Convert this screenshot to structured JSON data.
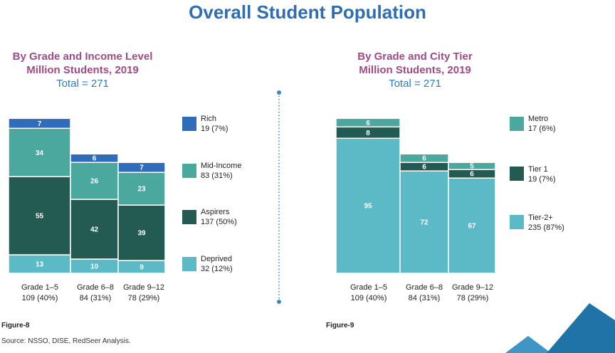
{
  "title": "Overall Student Population",
  "source": "Source: NSSO, DISE, RedSeer Analysis.",
  "decoration_colors": [
    "#1f73a7",
    "#3e95c6"
  ],
  "chart_data": [
    {
      "type": "bar",
      "stacked": true,
      "figure_label": "Figure-8",
      "title": "By Grade and Income Level",
      "subtitle": "Million Students, 2019",
      "total_label": "Total = 271",
      "categories": [
        "Grade 1–5",
        "Grade 6–8",
        "Grade 9–12"
      ],
      "category_totals": [
        "109 (40%)",
        "84 (31%)",
        "78 (29%)"
      ],
      "series": [
        {
          "name": "Deprived",
          "values": [
            13,
            10,
            9
          ],
          "color": "#5bbac6",
          "legend_value": "32 (12%)"
        },
        {
          "name": "Aspirers",
          "values": [
            55,
            42,
            39
          ],
          "color": "#235a52",
          "legend_value": "137 (50%)"
        },
        {
          "name": "Mid-Income",
          "values": [
            34,
            26,
            23
          ],
          "color": "#4ba89e",
          "legend_value": "83 (31%)"
        },
        {
          "name": "Rich",
          "values": [
            7,
            6,
            7
          ],
          "color": "#2f6dbb",
          "legend_value": "19 (7%)"
        }
      ],
      "legend_placement": "right",
      "grid": false
    },
    {
      "type": "bar",
      "stacked": true,
      "figure_label": "Figure-9",
      "title": "By Grade and City Tier",
      "subtitle": "Million Students, 2019",
      "total_label": "Total = 271",
      "categories": [
        "Grade 1–5",
        "Grade 6–8",
        "Grade 9–12"
      ],
      "category_totals": [
        "109 (40%)",
        "84 (31%)",
        "78 (29%)"
      ],
      "series": [
        {
          "name": "Tier-2+",
          "values": [
            95,
            72,
            67
          ],
          "color": "#5bbac6",
          "legend_value": "235 (87%)"
        },
        {
          "name": "Tier 1",
          "values": [
            8,
            6,
            6
          ],
          "color": "#235a52",
          "legend_value": "19 (7%)"
        },
        {
          "name": "Metro",
          "values": [
            6,
            6,
            5
          ],
          "color": "#4ba89e",
          "legend_value": "17 (6%)"
        }
      ],
      "legend_placement": "right",
      "grid": false
    }
  ]
}
